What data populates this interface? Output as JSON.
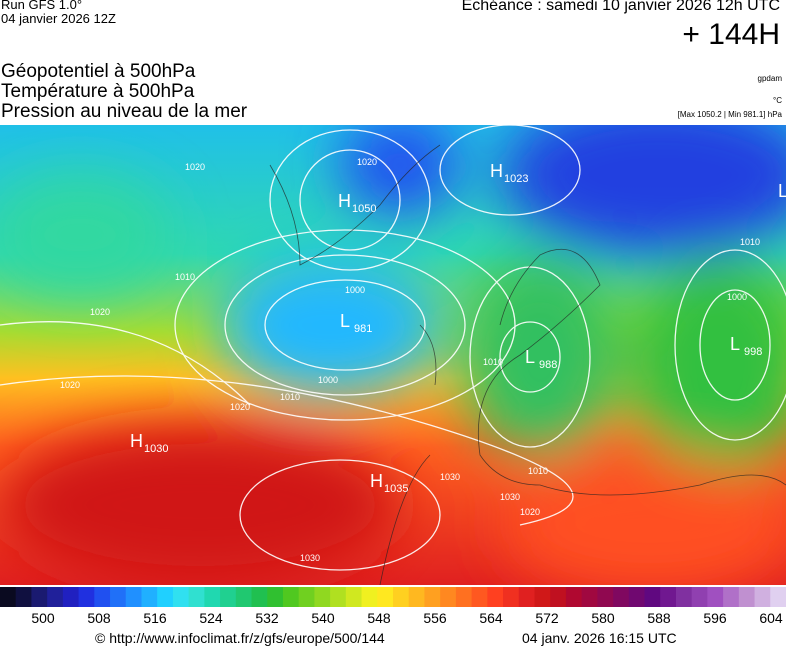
{
  "header": {
    "run": "Run GFS 1.0°",
    "run_date": "04 janvier 2026 12Z",
    "valid": "Echéance : samedi 10 janvier 2026 12h UTC",
    "lead": "+ 144H",
    "titles": [
      "Géopotentiel à 500hPa",
      "Température à 500hPa",
      "Pression au niveau de la mer"
    ],
    "units": [
      "gpdam",
      "°C",
      "[Max 1050.2 | Min 981.1] hPa"
    ]
  },
  "map": {
    "centers": [
      {
        "kind": "H",
        "value": "1050"
      },
      {
        "kind": "L",
        "value": "981"
      },
      {
        "kind": "H",
        "value": "1030"
      },
      {
        "kind": "H",
        "value": "1035"
      },
      {
        "kind": "L",
        "value": "988"
      },
      {
        "kind": "L",
        "value": "998"
      },
      {
        "kind": "H",
        "value": "1023"
      },
      {
        "kind": "L",
        "value": ""
      }
    ],
    "isobar_labels": [
      "1020",
      "1020",
      "1010",
      "1020",
      "1000",
      "1000",
      "1010",
      "1020",
      "1020",
      "1030",
      "1030",
      "1010",
      "1010",
      "1000",
      "1010",
      "1020",
      "1030"
    ]
  },
  "colorbar": {
    "colors": [
      "#0a0a20",
      "#101040",
      "#1a1a70",
      "#20209a",
      "#2020c0",
      "#2030e0",
      "#2050f0",
      "#2070f8",
      "#2090ff",
      "#20b0ff",
      "#20d0ff",
      "#30e0f0",
      "#30e0d0",
      "#20d8b0",
      "#20d090",
      "#20c870",
      "#20c050",
      "#30c030",
      "#50c820",
      "#70d020",
      "#90d820",
      "#b0e020",
      "#d0e820",
      "#f0f020",
      "#ffe820",
      "#ffd020",
      "#ffb820",
      "#ffa020",
      "#ff8820",
      "#ff7020",
      "#ff5820",
      "#ff4020",
      "#f03020",
      "#e02020",
      "#d01818",
      "#c01020",
      "#b00830",
      "#a00840",
      "#900850",
      "#800860",
      "#700870",
      "#600880",
      "#701890",
      "#8030a0",
      "#9040b0",
      "#a050c0",
      "#b070c8",
      "#c090d0",
      "#d0b0e0",
      "#e0d0f0"
    ],
    "ticks": [
      "500",
      "508",
      "516",
      "524",
      "532",
      "540",
      "548",
      "556",
      "564",
      "572",
      "580",
      "588",
      "596",
      "604"
    ]
  },
  "footer": {
    "source": "© http://www.infoclimat.fr/z/gfs/europe/500/144",
    "generated": "04 janv. 2026 16:15 UTC"
  }
}
